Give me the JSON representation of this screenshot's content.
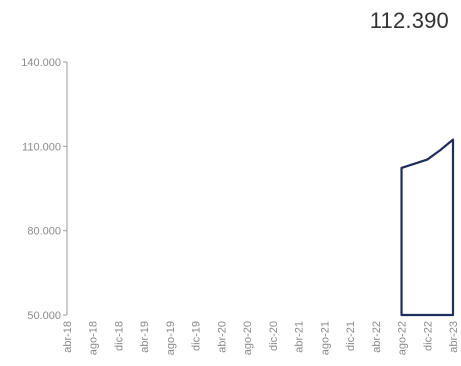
{
  "headline": {
    "value": "112.390"
  },
  "chart_data": {
    "type": "area",
    "x_ticks": [
      "abr-18",
      "ago-18",
      "dic-18",
      "abr-19",
      "ago-19",
      "dic-19",
      "abr-20",
      "ago-20",
      "dic-20",
      "abr-21",
      "ago-21",
      "dic-21",
      "abr-22",
      "ago-22",
      "dic-22",
      "abr-23"
    ],
    "y_ticks": [
      "50.000",
      "80.000",
      "110.000",
      "140.000"
    ],
    "ylim": [
      50000,
      140000
    ],
    "series": [
      {
        "x": [
          "ago-22",
          "dic-22",
          "feb-23",
          "abr-23"
        ],
        "values": [
          102300,
          105300,
          108600,
          112390
        ]
      }
    ],
    "line_color": "#1f2d5c",
    "xlabel": "",
    "ylabel": "",
    "title": ""
  }
}
